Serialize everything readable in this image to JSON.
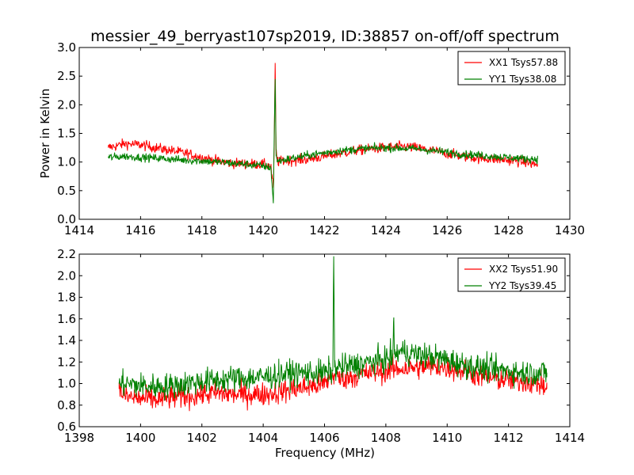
{
  "figure": {
    "title": "messier_49_berryast107sp2019, ID:38857 on-off/off spectrum",
    "xlabel": "Frequency (MHz)"
  },
  "chart_data": [
    {
      "type": "line",
      "title": "messier_49_berryast107sp2019, ID:38857 on-off/off spectrum",
      "xlabel": "",
      "ylabel": "Power in Kelvin",
      "xlim": [
        1414,
        1430
      ],
      "ylim": [
        0.0,
        3.0
      ],
      "xticks": [
        "1414",
        "1416",
        "1418",
        "1420",
        "1422",
        "1424",
        "1426",
        "1428",
        "1430"
      ],
      "yticks": [
        "0.0",
        "0.5",
        "1.0",
        "1.5",
        "2.0",
        "2.5",
        "3.0"
      ],
      "grid": false,
      "legend_position": "top-right",
      "series": [
        {
          "name": "XX1 Tsys57.88",
          "color": "#ff0000",
          "x": [
            1414.95,
            1415.5,
            1416.0,
            1416.5,
            1417.0,
            1417.5,
            1418.0,
            1418.5,
            1419.0,
            1419.5,
            1420.0,
            1420.25,
            1420.33,
            1420.36,
            1420.39,
            1420.42,
            1420.45,
            1420.5,
            1420.6,
            1421.0,
            1421.5,
            1422.0,
            1422.5,
            1423.0,
            1423.5,
            1424.0,
            1424.5,
            1425.0,
            1425.5,
            1426.0,
            1426.5,
            1427.0,
            1427.5,
            1428.0,
            1428.5,
            1428.95
          ],
          "y": [
            1.25,
            1.32,
            1.3,
            1.25,
            1.2,
            1.15,
            1.08,
            1.02,
            0.98,
            0.97,
            0.96,
            0.93,
            0.55,
            1.3,
            2.73,
            1.2,
            1.05,
            1.0,
            1.02,
            1.03,
            1.05,
            1.1,
            1.15,
            1.2,
            1.23,
            1.25,
            1.27,
            1.25,
            1.2,
            1.15,
            1.1,
            1.07,
            1.05,
            1.03,
            1.0,
            0.95
          ]
        },
        {
          "name": "YY1 Tsys38.08",
          "color": "#008000",
          "x": [
            1414.95,
            1415.5,
            1416.0,
            1416.5,
            1417.0,
            1417.5,
            1418.0,
            1418.5,
            1419.0,
            1419.5,
            1420.0,
            1420.25,
            1420.33,
            1420.36,
            1420.39,
            1420.42,
            1420.45,
            1420.5,
            1420.6,
            1421.0,
            1421.5,
            1422.0,
            1422.5,
            1423.0,
            1423.5,
            1424.0,
            1424.5,
            1425.0,
            1425.5,
            1426.0,
            1426.5,
            1427.0,
            1427.5,
            1428.0,
            1428.5,
            1428.95
          ],
          "y": [
            1.08,
            1.1,
            1.08,
            1.07,
            1.05,
            1.03,
            1.02,
            1.0,
            0.98,
            0.96,
            0.93,
            0.9,
            0.28,
            1.5,
            2.45,
            1.1,
            1.05,
            1.02,
            1.03,
            1.07,
            1.12,
            1.16,
            1.2,
            1.22,
            1.24,
            1.25,
            1.24,
            1.23,
            1.2,
            1.17,
            1.14,
            1.12,
            1.1,
            1.08,
            1.06,
            1.05
          ]
        }
      ]
    },
    {
      "type": "line",
      "title": "",
      "xlabel": "Frequency (MHz)",
      "ylabel": "",
      "xlim": [
        1398,
        1414
      ],
      "ylim": [
        0.6,
        2.2
      ],
      "xticks": [
        "1398",
        "1400",
        "1402",
        "1404",
        "1406",
        "1408",
        "1410",
        "1412",
        "1414"
      ],
      "yticks": [
        "0.6",
        "0.8",
        "1.0",
        "1.2",
        "1.4",
        "1.6",
        "1.8",
        "2.0",
        "2.2"
      ],
      "grid": false,
      "legend_position": "top-right",
      "series": [
        {
          "name": "XX2 Tsys51.90",
          "color": "#ff0000",
          "x": [
            1399.3,
            1399.5,
            1400.0,
            1400.5,
            1401.0,
            1401.5,
            1402.0,
            1402.5,
            1403.0,
            1403.5,
            1404.0,
            1404.5,
            1405.0,
            1405.5,
            1406.0,
            1406.3,
            1406.5,
            1407.0,
            1407.5,
            1408.0,
            1408.5,
            1409.0,
            1409.5,
            1410.0,
            1410.5,
            1411.0,
            1411.5,
            1412.0,
            1412.5,
            1413.0,
            1413.25
          ],
          "y": [
            0.95,
            0.88,
            0.86,
            0.85,
            0.87,
            0.88,
            0.9,
            0.91,
            0.9,
            0.9,
            0.9,
            0.92,
            0.95,
            0.97,
            1.0,
            1.08,
            1.05,
            1.07,
            1.1,
            1.12,
            1.14,
            1.15,
            1.16,
            1.15,
            1.12,
            1.08,
            1.05,
            1.03,
            1.02,
            1.0,
            0.95
          ]
        },
        {
          "name": "YY2 Tsys39.45",
          "color": "#008000",
          "x": [
            1399.3,
            1399.5,
            1400.0,
            1400.5,
            1401.0,
            1401.5,
            1402.0,
            1402.5,
            1403.0,
            1403.5,
            1404.0,
            1404.5,
            1405.0,
            1405.5,
            1406.0,
            1406.27,
            1406.3,
            1406.33,
            1406.5,
            1407.0,
            1407.5,
            1408.0,
            1408.22,
            1408.25,
            1408.28,
            1408.5,
            1409.0,
            1409.5,
            1410.0,
            1410.5,
            1411.0,
            1411.5,
            1412.0,
            1412.5,
            1413.0,
            1413.25
          ],
          "y": [
            1.0,
            1.0,
            0.98,
            0.97,
            0.98,
            1.0,
            1.02,
            1.03,
            1.05,
            1.05,
            1.06,
            1.08,
            1.1,
            1.1,
            1.1,
            1.12,
            2.18,
            1.15,
            1.15,
            1.17,
            1.2,
            1.22,
            1.25,
            1.57,
            1.27,
            1.3,
            1.27,
            1.25,
            1.22,
            1.18,
            1.15,
            1.13,
            1.12,
            1.1,
            1.1,
            1.1
          ]
        }
      ]
    }
  ]
}
